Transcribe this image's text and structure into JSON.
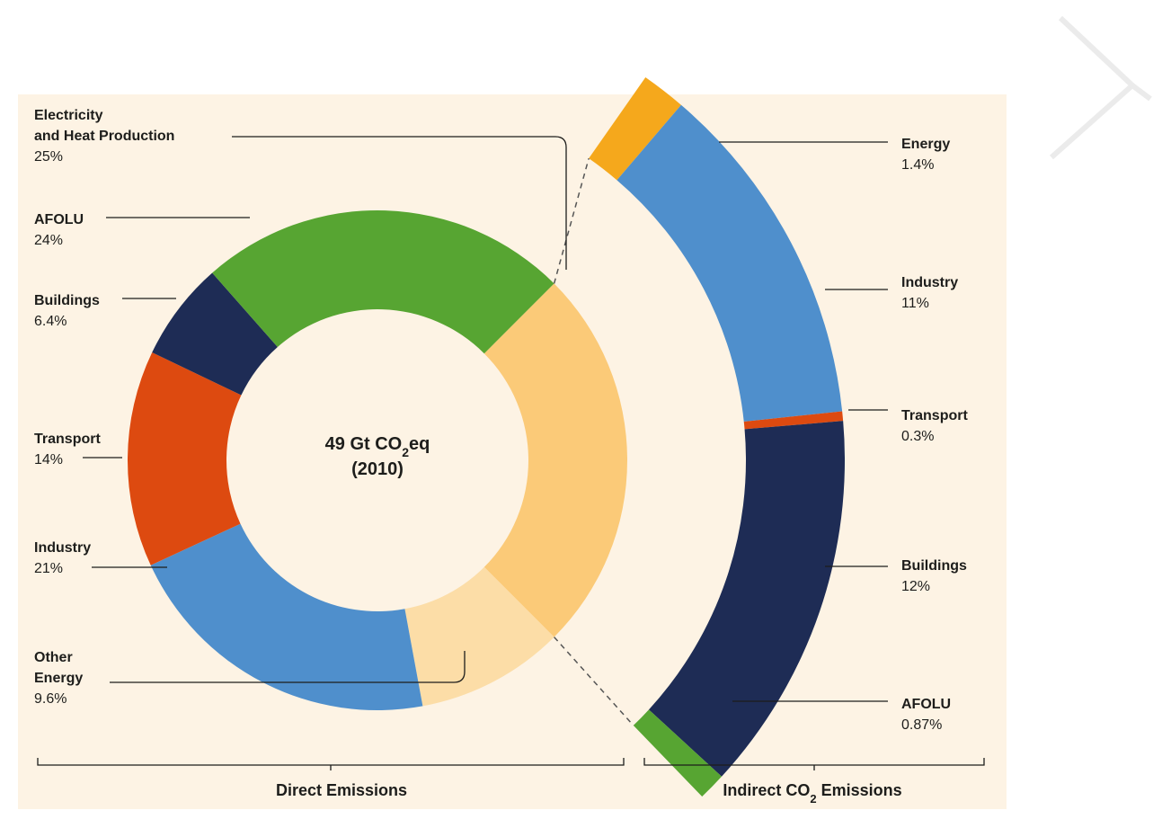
{
  "chart_data": {
    "type": "pie",
    "center_label": {
      "line1_prefix": "49 Gt CO",
      "line1_sub": "2",
      "line1_suffix": "eq",
      "line2": "(2010)"
    },
    "direct": {
      "title": "Direct Emissions",
      "unit": "%",
      "slices": [
        {
          "key": "electricity",
          "lines": [
            "Electricity",
            "and Heat Production"
          ],
          "value": 25,
          "value_label": "25%",
          "color": "#fbca78"
        },
        {
          "key": "other_energy",
          "lines": [
            "Other",
            "Energy"
          ],
          "value": 9.6,
          "value_label": "9.6%",
          "color": "#fcdda7"
        },
        {
          "key": "industry",
          "lines": [
            "Industry"
          ],
          "value": 21,
          "value_label": "21%",
          "color": "#4f8fcc"
        },
        {
          "key": "transport",
          "lines": [
            "Transport"
          ],
          "value": 14,
          "value_label": "14%",
          "color": "#dd4a10"
        },
        {
          "key": "buildings",
          "lines": [
            "Buildings"
          ],
          "value": 6.4,
          "value_label": "6.4%",
          "color": "#1e2c55"
        },
        {
          "key": "afolu",
          "lines": [
            "AFOLU"
          ],
          "value": 24,
          "value_label": "24%",
          "color": "#57a532"
        }
      ]
    },
    "indirect": {
      "title_prefix": "Indirect CO",
      "title_sub": "2",
      "title_suffix": " Emissions",
      "unit": "%",
      "slices": [
        {
          "key": "energy",
          "label": "Energy",
          "value": 1.4,
          "value_label": "1.4%",
          "color": "#f5a81c"
        },
        {
          "key": "industry",
          "label": "Industry",
          "value": 11,
          "value_label": "11%",
          "color": "#4f8fcc"
        },
        {
          "key": "transport",
          "label": "Transport",
          "value": 0.3,
          "value_label": "0.3%",
          "color": "#dd4a10"
        },
        {
          "key": "buildings",
          "label": "Buildings",
          "value": 12,
          "value_label": "12%",
          "color": "#1e2c55"
        },
        {
          "key": "afolu",
          "label": "AFOLU",
          "value": 0.87,
          "value_label": "0.87%",
          "color": "#57a532"
        }
      ]
    }
  },
  "colors": {
    "panel_background": "#fdf3e4",
    "text": "#1d1d1b"
  }
}
